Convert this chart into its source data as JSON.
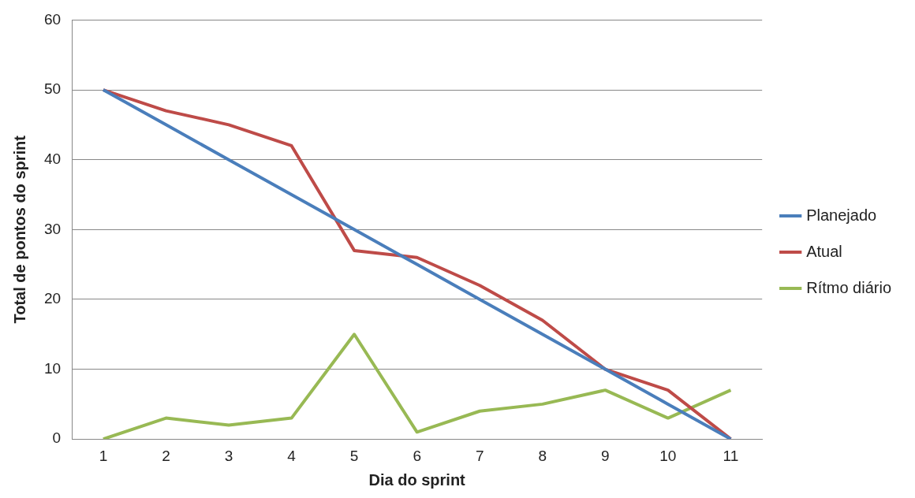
{
  "chart_data": {
    "type": "line",
    "xlabel": "Dia do sprint",
    "ylabel": "Total de pontos do sprint",
    "categories": [
      "1",
      "2",
      "3",
      "4",
      "5",
      "6",
      "7",
      "8",
      "9",
      "10",
      "11"
    ],
    "series": [
      {
        "name": "Planejado",
        "color": "#4a7ebb",
        "values": [
          50,
          45,
          40,
          35,
          30,
          25,
          20,
          15,
          10,
          5,
          0
        ]
      },
      {
        "name": "Atual",
        "color": "#be4b48",
        "values": [
          50,
          47,
          45,
          42,
          27,
          26,
          22,
          17,
          10,
          7,
          0
        ]
      },
      {
        "name": "Rítmo diário",
        "color": "#98b954",
        "values": [
          0,
          3,
          2,
          3,
          15,
          1,
          4,
          5,
          7,
          3,
          7
        ]
      }
    ],
    "ylim": [
      0,
      60
    ],
    "yticks": [
      0,
      10,
      20,
      30,
      40,
      50,
      60
    ],
    "grid": "y",
    "legend": "right",
    "marker": "none",
    "line_style": "solid"
  }
}
